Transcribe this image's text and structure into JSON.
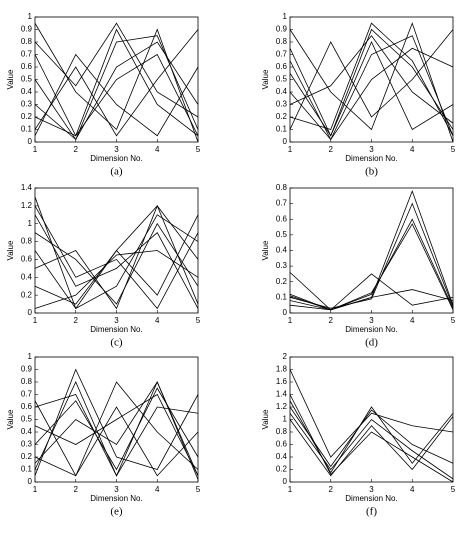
{
  "chart_data": [
    {
      "type": "line",
      "caption": "(a)",
      "x_label": "Dimension No.",
      "y_label": "Value",
      "color": "#000000",
      "x": [
        1,
        2,
        3,
        4,
        5
      ],
      "xlim": [
        1,
        5
      ],
      "xticks": [
        1,
        2,
        3,
        4,
        5
      ],
      "ylim": [
        0,
        1
      ],
      "yticks": [
        0,
        0.1,
        0.2,
        0.3,
        0.4,
        0.5,
        0.6,
        0.7,
        0.8,
        0.9,
        1
      ],
      "series": [
        {
          "values": [
            0.7,
            0.05,
            0.9,
            0.3,
            0.05
          ]
        },
        {
          "values": [
            0.3,
            0.02,
            0.8,
            0.85,
            0.1
          ]
        },
        {
          "values": [
            0.95,
            0.4,
            0.1,
            0.9,
            0.0
          ]
        },
        {
          "values": [
            0.1,
            0.6,
            0.05,
            0.5,
            0.9
          ]
        },
        {
          "values": [
            0.5,
            0.02,
            0.6,
            0.8,
            0.3
          ]
        },
        {
          "values": [
            0.05,
            0.7,
            0.3,
            0.05,
            0.6
          ]
        },
        {
          "values": [
            0.8,
            0.45,
            0.95,
            0.4,
            0.2
          ]
        },
        {
          "values": [
            0.2,
            0.05,
            0.5,
            0.7,
            0.05
          ]
        }
      ]
    },
    {
      "type": "line",
      "caption": "(b)",
      "x_label": "Dimension No.",
      "y_label": "Value",
      "color": "#000000",
      "x": [
        1,
        2,
        3,
        4,
        5
      ],
      "xlim": [
        1,
        5
      ],
      "xticks": [
        1,
        2,
        3,
        4,
        5
      ],
      "ylim": [
        0,
        1
      ],
      "yticks": [
        0,
        0.1,
        0.2,
        0.3,
        0.4,
        0.5,
        0.6,
        0.7,
        0.8,
        0.9,
        1
      ],
      "series": [
        {
          "values": [
            0.75,
            0.05,
            0.9,
            0.6,
            0.1
          ]
        },
        {
          "values": [
            0.4,
            0.02,
            0.7,
            0.85,
            0.05
          ]
        },
        {
          "values": [
            0.9,
            0.4,
            0.1,
            0.95,
            0.0
          ]
        },
        {
          "values": [
            0.1,
            0.8,
            0.2,
            0.5,
            0.9
          ]
        },
        {
          "values": [
            0.55,
            0.05,
            0.8,
            0.1,
            0.3
          ]
        },
        {
          "values": [
            0.2,
            0.1,
            0.95,
            0.65,
            0.05
          ]
        },
        {
          "values": [
            0.65,
            0.02,
            0.5,
            0.75,
            0.6
          ]
        },
        {
          "values": [
            0.3,
            0.45,
            0.85,
            0.4,
            0.15
          ]
        }
      ]
    },
    {
      "type": "line",
      "caption": "(c)",
      "x_label": "Dimension No.",
      "y_label": "Value",
      "color": "#000000",
      "x": [
        1,
        2,
        3,
        4,
        5
      ],
      "xlim": [
        1,
        5
      ],
      "xticks": [
        1,
        2,
        3,
        4,
        5
      ],
      "ylim": [
        0,
        1.4
      ],
      "yticks": [
        0,
        0.2,
        0.4,
        0.6,
        0.8,
        1,
        1.2,
        1.4
      ],
      "series": [
        {
          "values": [
            1.3,
            0.05,
            0.7,
            1.2,
            0.1
          ]
        },
        {
          "values": [
            0.9,
            0.6,
            0.1,
            1.0,
            0.3
          ]
        },
        {
          "values": [
            0.3,
            0.1,
            0.7,
            0.2,
            1.1
          ]
        },
        {
          "values": [
            1.1,
            0.3,
            0.5,
            0.9,
            0.05
          ]
        },
        {
          "values": [
            0.5,
            0.7,
            0.05,
            1.2,
            0.6
          ]
        },
        {
          "values": [
            1.2,
            0.4,
            0.6,
            0.05,
            0.9
          ]
        },
        {
          "values": [
            0.05,
            0.2,
            0.65,
            0.7,
            0.4
          ]
        },
        {
          "values": [
            0.7,
            0.05,
            0.3,
            1.1,
            0.8
          ]
        }
      ]
    },
    {
      "type": "line",
      "caption": "(d)",
      "x_label": "Dimension No.",
      "y_label": "Value",
      "color": "#000000",
      "x": [
        1,
        2,
        3,
        4,
        5
      ],
      "xlim": [
        1,
        5
      ],
      "xticks": [
        1,
        2,
        3,
        4,
        5
      ],
      "ylim": [
        0,
        0.8
      ],
      "yticks": [
        0,
        0.1,
        0.2,
        0.3,
        0.4,
        0.5,
        0.6,
        0.7,
        0.8
      ],
      "series": [
        {
          "values": [
            0.12,
            0.02,
            0.1,
            0.78,
            0.05
          ]
        },
        {
          "values": [
            0.08,
            0.02,
            0.12,
            0.6,
            0.03
          ]
        },
        {
          "values": [
            0.1,
            0.03,
            0.09,
            0.7,
            0.04
          ]
        },
        {
          "values": [
            0.26,
            0.02,
            0.1,
            0.15,
            0.08
          ]
        },
        {
          "values": [
            0.05,
            0.02,
            0.25,
            0.05,
            0.1
          ]
        },
        {
          "values": [
            0.11,
            0.02,
            0.13,
            0.57,
            0.02
          ]
        }
      ]
    },
    {
      "type": "line",
      "caption": "(e)",
      "x_label": "Dimension No.",
      "y_label": "Value",
      "color": "#000000",
      "x": [
        1,
        2,
        3,
        4,
        5
      ],
      "xlim": [
        1,
        5
      ],
      "xticks": [
        1,
        2,
        3,
        4,
        5
      ],
      "ylim": [
        0,
        1
      ],
      "yticks": [
        0,
        0.1,
        0.2,
        0.3,
        0.4,
        0.5,
        0.6,
        0.7,
        0.8,
        0.9,
        1
      ],
      "series": [
        {
          "values": [
            0.1,
            0.8,
            0.05,
            0.8,
            0.05
          ]
        },
        {
          "values": [
            0.3,
            0.65,
            0.1,
            0.75,
            0.2
          ]
        },
        {
          "values": [
            0.65,
            0.05,
            0.6,
            0.05,
            0.4
          ]
        },
        {
          "values": [
            0.05,
            0.9,
            0.2,
            0.1,
            0.7
          ]
        },
        {
          "values": [
            0.45,
            0.3,
            0.5,
            0.7,
            0.05
          ]
        },
        {
          "values": [
            0.2,
            0.05,
            0.8,
            0.4,
            0.1
          ]
        },
        {
          "values": [
            0.6,
            0.7,
            0.05,
            0.6,
            0.55
          ]
        },
        {
          "values": [
            0.15,
            0.5,
            0.3,
            0.8,
            0.02
          ]
        }
      ]
    },
    {
      "type": "line",
      "caption": "(f)",
      "x_label": "Dimension No.",
      "y_label": "Value",
      "color": "#000000",
      "x": [
        1,
        2,
        3,
        4,
        5
      ],
      "xlim": [
        1,
        5
      ],
      "xticks": [
        1,
        2,
        3,
        4,
        5
      ],
      "ylim": [
        0,
        2
      ],
      "yticks": [
        0,
        0.2,
        0.4,
        0.6,
        0.8,
        1,
        1.2,
        1.4,
        1.6,
        1.8,
        2
      ],
      "series": [
        {
          "values": [
            1.3,
            0.15,
            1.2,
            0.3,
            1.1
          ]
        },
        {
          "values": [
            1.1,
            0.2,
            1.0,
            0.5,
            0.05
          ]
        },
        {
          "values": [
            1.8,
            0.4,
            1.1,
            0.9,
            0.8
          ]
        },
        {
          "values": [
            1.0,
            0.1,
            0.9,
            0.2,
            1.05
          ]
        },
        {
          "values": [
            1.2,
            0.25,
            1.15,
            0.6,
            0.3
          ]
        },
        {
          "values": [
            1.4,
            0.12,
            0.8,
            0.4,
            0.0
          ]
        }
      ]
    }
  ]
}
